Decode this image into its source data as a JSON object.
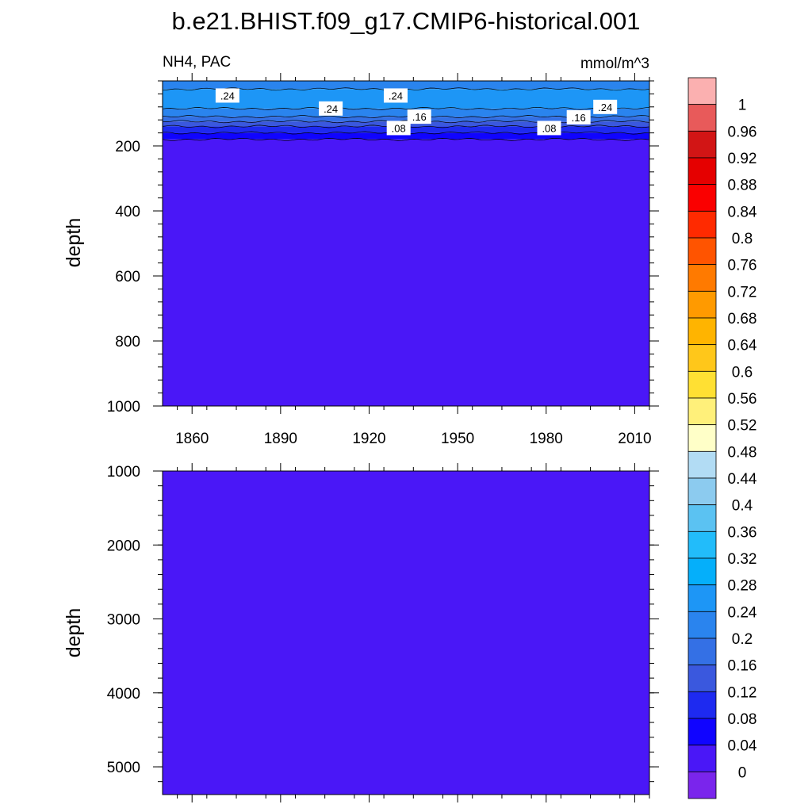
{
  "chart_data": {
    "type": "contour",
    "title": "b.e21.BHIST.f09_g17.CMIP6-historical.001",
    "left_string": "NH4, PAC",
    "right_string": "mmol/m^3",
    "x_ticks": [
      1860,
      1890,
      1920,
      1950,
      1980,
      2010
    ],
    "x_range": [
      1850,
      2015
    ],
    "panels": [
      {
        "name": "upper",
        "ylabel": "depth",
        "ylim": [
          0,
          1000
        ],
        "y_ticks": [
          200,
          400,
          600,
          800,
          1000
        ],
        "y_reversed": true,
        "layers": [
          {
            "from": 0,
            "to": 25,
            "value": 0.22
          },
          {
            "from": 25,
            "to": 85,
            "value": 0.26
          },
          {
            "from": 85,
            "to": 110,
            "value": 0.22
          },
          {
            "from": 110,
            "to": 125,
            "value": 0.18
          },
          {
            "from": 125,
            "to": 140,
            "value": 0.14
          },
          {
            "from": 140,
            "to": 160,
            "value": 0.1
          },
          {
            "from": 160,
            "to": 180,
            "value": 0.06
          },
          {
            "from": 180,
            "to": 1000,
            "value": 0.02
          }
        ],
        "contour_labels": [
          {
            "text": ".24",
            "x": 1872,
            "depth": 45
          },
          {
            "text": ".24",
            "x": 1907,
            "depth": 85
          },
          {
            "text": ".24",
            "x": 1929,
            "depth": 45
          },
          {
            "text": ".24",
            "x": 2000,
            "depth": 80
          },
          {
            "text": ".16",
            "x": 1937,
            "depth": 110
          },
          {
            "text": ".16",
            "x": 1991,
            "depth": 112
          },
          {
            "text": ".08",
            "x": 1930,
            "depth": 145
          },
          {
            "text": ".08",
            "x": 1981,
            "depth": 145
          }
        ]
      },
      {
        "name": "lower",
        "ylabel": "depth",
        "ylim": [
          1000,
          5375
        ],
        "y_ticks": [
          1000,
          2000,
          3000,
          4000,
          5000
        ],
        "y_reversed": true,
        "layers": [
          {
            "from": 1000,
            "to": 5375,
            "value": 0.02
          }
        ],
        "contour_labels": []
      }
    ],
    "colorbar": {
      "labels": [
        "1",
        "0.96",
        "0.92",
        "0.88",
        "0.84",
        "0.8",
        "0.76",
        "0.72",
        "0.68",
        "0.64",
        "0.6",
        "0.56",
        "0.52",
        "0.48",
        "0.44",
        "0.4",
        "0.36",
        "0.32",
        "0.28",
        "0.24",
        "0.2",
        "0.16",
        "0.12",
        "0.08",
        "0.04",
        "0"
      ],
      "colors": [
        "#fbb0b0",
        "#e85a5a",
        "#d21515",
        "#e50000",
        "#fa0000",
        "#ff2a00",
        "#ff5400",
        "#ff7a00",
        "#ff9a00",
        "#ffb400",
        "#ffc71a",
        "#ffe033",
        "#fff07a",
        "#ffffc8",
        "#b2dcf4",
        "#8ccbef",
        "#5bc2f2",
        "#22bcfa",
        "#05affa",
        "#1d96f6",
        "#2a84ee",
        "#3470e5",
        "#3a58de",
        "#1e2af0",
        "#1004ff",
        "#4a17f7",
        "#7a25ec"
      ]
    }
  }
}
